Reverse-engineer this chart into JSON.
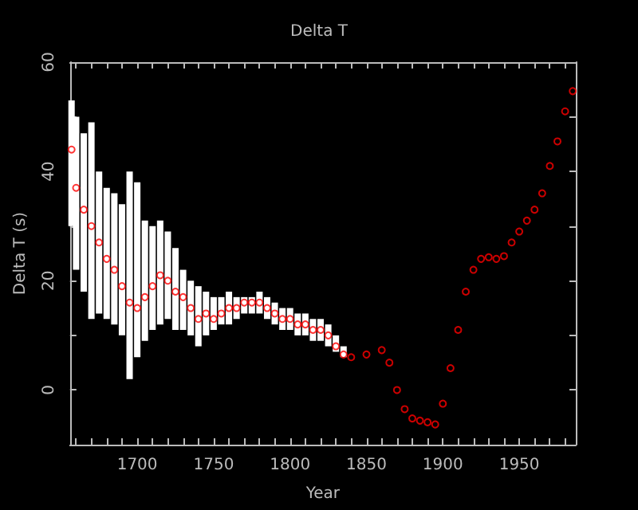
{
  "chart_data": {
    "type": "scatter",
    "title": "Delta T",
    "xlabel": "Year",
    "ylabel": "Delta T (s)",
    "x": [
      1657,
      1660,
      1665,
      1670,
      1675,
      1680,
      1685,
      1690,
      1695,
      1700,
      1705,
      1710,
      1715,
      1720,
      1725,
      1730,
      1735,
      1740,
      1745,
      1750,
      1755,
      1760,
      1765,
      1770,
      1775,
      1780,
      1785,
      1790,
      1795,
      1800,
      1805,
      1810,
      1815,
      1820,
      1825,
      1830,
      1835,
      1840,
      1850,
      1860,
      1865,
      1870,
      1875,
      1880,
      1885,
      1890,
      1895,
      1900,
      1905,
      1910,
      1915,
      1920,
      1925,
      1930,
      1935,
      1940,
      1945,
      1950,
      1955,
      1960,
      1965,
      1970,
      1975,
      1980,
      1985
    ],
    "series": [
      {
        "color": "#ff0000",
        "values": [
          44,
          37,
          33,
          30,
          27,
          24,
          22,
          19,
          16,
          15,
          17,
          19,
          21,
          20,
          18,
          17,
          15,
          13,
          14,
          13,
          14,
          15,
          15,
          16,
          16,
          16,
          15,
          14,
          13,
          13,
          12,
          12,
          11,
          11,
          10,
          8,
          6.5,
          6,
          6.5,
          7.3,
          5,
          0,
          -3.5,
          -5.2,
          -5.6,
          -5.9,
          -6.3,
          -2.5,
          4,
          11,
          18,
          22,
          24,
          24.3,
          24,
          24.5,
          27,
          29,
          31,
          33,
          36,
          41,
          45.5,
          51,
          54.7
        ],
        "errors": [
          [
            30,
            53
          ],
          [
            22,
            50
          ],
          [
            18,
            47
          ],
          [
            13,
            49
          ],
          [
            14,
            40
          ],
          [
            13,
            37
          ],
          [
            12,
            36
          ],
          [
            10,
            34
          ],
          [
            2,
            40
          ],
          [
            6,
            38
          ],
          [
            9,
            31
          ],
          [
            11,
            30
          ],
          [
            12,
            31
          ],
          [
            13,
            29
          ],
          [
            11,
            26
          ],
          [
            11,
            22
          ],
          [
            10,
            20
          ],
          [
            8,
            19
          ],
          [
            10,
            18
          ],
          [
            11,
            17
          ],
          [
            12,
            17
          ],
          [
            12,
            18
          ],
          [
            13,
            17
          ],
          [
            14,
            17
          ],
          [
            14,
            17
          ],
          [
            14,
            18
          ],
          [
            13,
            17
          ],
          [
            12,
            16
          ],
          [
            11,
            15
          ],
          [
            11,
            15
          ],
          [
            10,
            14
          ],
          [
            10,
            14
          ],
          [
            9,
            13
          ],
          [
            9,
            13
          ],
          [
            8,
            12
          ],
          [
            7,
            10
          ],
          [
            6,
            8
          ],
          null,
          null,
          null,
          null,
          null,
          null,
          null,
          null,
          null,
          null,
          null,
          null,
          null,
          null,
          null,
          null,
          null,
          null,
          null,
          null,
          null,
          null,
          null,
          null,
          null,
          null,
          null,
          null
        ]
      }
    ],
    "xlim": [
      1656,
      1987
    ],
    "xticks": [
      {
        "value": 1660,
        "label": null
      },
      {
        "value": 1670,
        "label": null
      },
      {
        "value": 1680,
        "label": null
      },
      {
        "value": 1690,
        "label": null
      },
      1700,
      {
        "value": 1710,
        "label": null
      },
      {
        "value": 1720,
        "label": null
      },
      {
        "value": 1730,
        "label": null
      },
      {
        "value": 1740,
        "label": null
      },
      1750,
      {
        "value": 1760,
        "label": null
      },
      {
        "value": 1770,
        "label": null
      },
      {
        "value": 1780,
        "label": null
      },
      {
        "value": 1790,
        "label": null
      },
      1800,
      {
        "value": 1810,
        "label": null
      },
      {
        "value": 1820,
        "label": null
      },
      {
        "value": 1830,
        "label": null
      },
      {
        "value": 1840,
        "label": null
      },
      1850,
      {
        "value": 1860,
        "label": null
      },
      {
        "value": 1870,
        "label": null
      },
      {
        "value": 1880,
        "label": null
      },
      {
        "value": 1890,
        "label": null
      },
      1900,
      {
        "value": 1910,
        "label": null
      },
      {
        "value": 1920,
        "label": null
      },
      {
        "value": 1930,
        "label": null
      },
      {
        "value": 1940,
        "label": null
      },
      1950,
      {
        "value": 1960,
        "label": null
      },
      {
        "value": 1970,
        "label": null
      },
      {
        "value": 1980,
        "label": null
      }
    ],
    "ylim": [
      -10,
      60
    ],
    "yticks": [
      {
        "value": -10,
        "label": null
      },
      0,
      {
        "value": 10,
        "label": null
      },
      20,
      {
        "value": 30,
        "label": null
      },
      40,
      {
        "value": 50,
        "label": null
      },
      60
    ],
    "marker": "circle",
    "grid": false,
    "legend": false
  }
}
